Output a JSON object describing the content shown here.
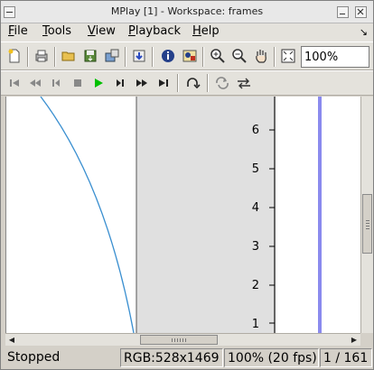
{
  "window": {
    "title": "MPlay [1] - Workspace: frames"
  },
  "menu": [
    {
      "label": "File",
      "accel": "F",
      "rest": "ile"
    },
    {
      "label": "Tools",
      "accel": "T",
      "rest": "ools"
    },
    {
      "label": "View",
      "accel": "V",
      "rest": "iew"
    },
    {
      "label": "Playback",
      "accel": "P",
      "rest": "layback"
    },
    {
      "label": "Help",
      "accel": "H",
      "rest": "elp"
    }
  ],
  "toolbar": {
    "zoom_value": "100%",
    "icons": [
      "new-icon",
      "print-icon",
      "open-icon",
      "save-icon",
      "export-icon",
      "import-icon",
      "info-icon",
      "image-info-icon",
      "zoom-in-icon",
      "zoom-out-icon",
      "pan-hand-icon",
      "fit-window-icon"
    ]
  },
  "playback": {
    "icons": [
      "go-to-start-icon",
      "step-back-fast-icon",
      "step-back-icon",
      "stop-icon",
      "play-icon",
      "step-forward-icon",
      "step-forward-fast-icon",
      "go-to-end-icon",
      "loop-once-icon",
      "loop-icon",
      "ping-pong-icon"
    ],
    "accent": "#00c000"
  },
  "viewport": {
    "y_ticks": [
      "6",
      "5",
      "4",
      "3",
      "2",
      "1"
    ],
    "curve_color": "#3a8fd0",
    "bar_color": "#8a8aee",
    "panel_color": "#e0e0e0"
  },
  "status": {
    "state": "Stopped",
    "resolution": "RGB:528x1469",
    "zoom_fps": "100% (20 fps)",
    "frame": "1 / 161"
  }
}
